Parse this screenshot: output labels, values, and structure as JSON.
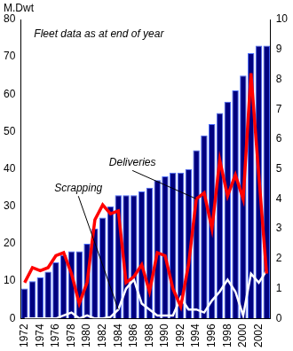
{
  "chart_data": {
    "type": "bar",
    "y_label": "M.Dwt",
    "annotations": [
      "Fleet data as at end of year"
    ],
    "categories": [
      "1972",
      null,
      "1974",
      null,
      "1976",
      null,
      "1978",
      null,
      "1980",
      null,
      "1982",
      null,
      "1984",
      null,
      "1986",
      null,
      "1988",
      null,
      "1990",
      null,
      "1992",
      null,
      "1994",
      null,
      "1996",
      null,
      "1998",
      null,
      "2000",
      null,
      "2002",
      null
    ],
    "series": [
      {
        "type": "bar",
        "color": "#000080",
        "values": [
          8,
          10,
          11,
          12.5,
          15,
          17,
          18,
          18,
          20,
          24,
          27,
          30,
          33,
          33,
          33,
          34,
          35,
          37,
          38,
          39,
          39,
          40,
          45,
          49,
          52,
          55,
          58,
          61,
          65,
          71,
          73,
          73
        ]
      },
      {
        "name": "Deliveries",
        "type": "line",
        "axis": "y2",
        "color": "#ff0000",
        "values": [
          1.2,
          1.7,
          1.6,
          1.7,
          2.1,
          2.2,
          1.5,
          0.5,
          1.2,
          3.3,
          3.8,
          3.5,
          3.6,
          1.2,
          1.4,
          1.8,
          0.9,
          2.2,
          2.1,
          1.0,
          0.4,
          1.8,
          4.0,
          4.2,
          3.0,
          5.3,
          4.1,
          4.8,
          4.0,
          8.2,
          4.8,
          1.5
        ]
      },
      {
        "name": "Scrapping",
        "type": "line",
        "axis": "y2",
        "color": "#ffffff",
        "values": [
          0,
          0,
          0,
          0,
          0,
          0.1,
          0.2,
          0,
          0.1,
          0,
          0,
          0.05,
          0.3,
          1.0,
          1.3,
          0.5,
          0.3,
          0.1,
          0.1,
          0.1,
          0.7,
          0.3,
          0.3,
          0.2,
          0.6,
          0.9,
          1.3,
          0.9,
          0.1,
          1.5,
          1.2,
          1.6
        ]
      }
    ],
    "ylim": [
      0,
      80
    ],
    "yticks": [
      0,
      10,
      20,
      30,
      40,
      50,
      60,
      70,
      80
    ],
    "y2lim": [
      0,
      10
    ],
    "y2ticks": [
      0,
      1,
      2,
      3,
      4,
      5,
      6,
      7,
      8,
      9,
      10
    ],
    "grid": false
  }
}
